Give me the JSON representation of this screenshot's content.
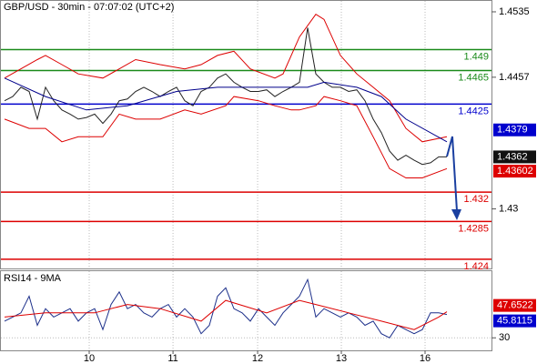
{
  "chart_data": [
    {
      "type": "line",
      "title": "GBP/USD - 30min - 07:07:02 (UTC+2)",
      "x": [
        0,
        1,
        2,
        3,
        4,
        5,
        6,
        7,
        8,
        9,
        10,
        11,
        12,
        13,
        14,
        15,
        16,
        17,
        18,
        19,
        20,
        21,
        22,
        23,
        24,
        25,
        26,
        27,
        28,
        29,
        30,
        31,
        32,
        33,
        34,
        35,
        36,
        37,
        38,
        39,
        40,
        41,
        42,
        43,
        44,
        45,
        46,
        47,
        48,
        49,
        50,
        51,
        52,
        53,
        54
      ],
      "series": [
        {
          "color": "#222222",
          "values": [
            1.4429,
            1.4434,
            1.4445,
            1.444,
            1.4407,
            1.4445,
            1.4429,
            1.4418,
            1.4413,
            1.4407,
            1.4409,
            1.4413,
            1.4402,
            1.4413,
            1.4429,
            1.4431,
            1.444,
            1.4445,
            1.444,
            1.4434,
            1.444,
            1.4445,
            1.4429,
            1.4423,
            1.444,
            1.4445,
            1.4456,
            1.4461,
            1.4451,
            1.4445,
            1.444,
            1.444,
            1.4442,
            1.4434,
            1.444,
            1.4445,
            1.4451,
            1.4516,
            1.4461,
            1.4451,
            1.4445,
            1.4445,
            1.444,
            1.4442,
            1.4429,
            1.4407,
            1.4391,
            1.4369,
            1.4358,
            1.4364,
            1.4358,
            1.4353,
            1.4355,
            1.4362,
            1.4362
          ]
        },
        {
          "color": "#dd0000",
          "x": [
            0,
            4,
            5,
            7,
            9,
            12,
            14,
            16,
            19,
            22,
            24,
            26,
            28,
            30,
            33,
            34,
            36,
            38,
            39,
            41,
            43,
            45,
            47,
            49,
            51,
            54
          ],
          "values": [
            1.4456,
            1.4478,
            1.4483,
            1.4472,
            1.4461,
            1.4456,
            1.4467,
            1.4478,
            1.4472,
            1.4467,
            1.4472,
            1.4483,
            1.4488,
            1.4467,
            1.4456,
            1.4461,
            1.4505,
            1.4532,
            1.4526,
            1.4483,
            1.4461,
            1.4445,
            1.4429,
            1.4396,
            1.438,
            1.4386
          ]
        },
        {
          "color": "#dd0000",
          "x": [
            0,
            3,
            5,
            7,
            9,
            12,
            14,
            16,
            19,
            22,
            24,
            27,
            28,
            31,
            33,
            35,
            36,
            38,
            39,
            41,
            43,
            45,
            47,
            49,
            51,
            54
          ],
          "values": [
            1.4407,
            1.4396,
            1.4396,
            1.438,
            1.4386,
            1.4386,
            1.4413,
            1.4407,
            1.4407,
            1.4418,
            1.4413,
            1.4423,
            1.4434,
            1.4429,
            1.4423,
            1.4418,
            1.4418,
            1.4423,
            1.4434,
            1.4429,
            1.4423,
            1.4386,
            1.4348,
            1.4337,
            1.4337,
            1.4348
          ]
        },
        {
          "color": "#00008b",
          "x": [
            0,
            5,
            10,
            15,
            21,
            26,
            33,
            37,
            39,
            43,
            46,
            49,
            54
          ],
          "values": [
            1.4456,
            1.4434,
            1.4418,
            1.4423,
            1.444,
            1.4445,
            1.4445,
            1.4445,
            1.4451,
            1.4445,
            1.4434,
            1.4407,
            1.438
          ]
        }
      ],
      "levels": [
        {
          "value": 1.449,
          "color": "#1a8a1a"
        },
        {
          "value": 1.4465,
          "color": "#1a8a1a"
        },
        {
          "value": 1.4425,
          "color": "#0000cd"
        },
        {
          "value": 1.432,
          "color": "#dd0000"
        },
        {
          "value": 1.4285,
          "color": "#dd0000"
        },
        {
          "value": 1.424,
          "color": "#dd0000"
        }
      ],
      "tags": [
        {
          "value": 1.4379,
          "color": "#0000cd"
        },
        {
          "value": 1.4362,
          "color": "#111111"
        },
        {
          "value": 1.43602,
          "color": "#dd0000"
        }
      ],
      "xlim": [
        -0.56,
        59.44
      ],
      "xticks": [
        {
          "value": 10.33,
          "label": "10"
        },
        {
          "value": 20.56,
          "label": "11"
        },
        {
          "value": 30.89,
          "label": "12"
        },
        {
          "value": 41.11,
          "label": "13"
        },
        {
          "value": 51.33,
          "label": "16"
        }
      ],
      "ylim": [
        1.4229,
        1.4548
      ],
      "yticks": [
        1.4535,
        1.4457,
        1.43
      ]
    },
    {
      "type": "line",
      "title": "RSI14 - 9MA",
      "x": [
        0,
        1,
        2,
        3,
        4,
        5,
        6,
        7,
        8,
        9,
        10,
        11,
        12,
        13,
        14,
        15,
        16,
        17,
        18,
        19,
        20,
        21,
        22,
        23,
        24,
        25,
        26,
        27,
        28,
        29,
        30,
        31,
        32,
        33,
        34,
        35,
        36,
        37,
        38,
        39,
        40,
        41,
        42,
        43,
        44,
        45,
        46,
        47,
        48,
        49,
        50,
        51,
        52,
        53,
        54
      ],
      "series": [
        {
          "color": "#1c2f8a",
          "values": [
            41.3,
            44.1,
            46.9,
            58.2,
            38.5,
            49.8,
            44.1,
            46.9,
            49.8,
            41.3,
            46.9,
            49.8,
            35.6,
            52.6,
            61.1,
            49.8,
            52.6,
            46.9,
            44.1,
            49.8,
            52.6,
            44.1,
            49.8,
            44.1,
            32.8,
            38.5,
            58.2,
            63.9,
            49.8,
            46.9,
            41.3,
            49.8,
            44.1,
            38.5,
            46.9,
            52.6,
            58.2,
            69.5,
            44.1,
            49.8,
            46.9,
            44.1,
            46.9,
            44.1,
            38.5,
            41.3,
            32.8,
            30.0,
            38.5,
            35.6,
            32.8,
            35.6,
            46.9,
            46.9,
            45.8
          ]
        },
        {
          "color": "#dd0000",
          "x": [
            0,
            5,
            11,
            15,
            19,
            24,
            27,
            32,
            36,
            38,
            42,
            46,
            50,
            53,
            54
          ],
          "values": [
            44.1,
            46.9,
            46.9,
            52.6,
            49.8,
            41.3,
            55.4,
            46.9,
            55.4,
            52.6,
            46.9,
            41.3,
            35.6,
            44.1,
            47.7
          ]
        }
      ],
      "tags": [
        {
          "value": 47.6522,
          "color": "#dd0000"
        },
        {
          "value": 45.8115,
          "color": "#0000cd"
        }
      ],
      "ylim": [
        21.5,
        75.2
      ],
      "yticks": [
        30
      ]
    }
  ]
}
